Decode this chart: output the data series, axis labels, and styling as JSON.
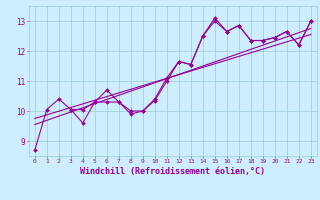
{
  "title": "",
  "xlabel": "Windchill (Refroidissement éolien,°C)",
  "ylabel": "",
  "bg_color": "#cceeff",
  "grid_color": "#99cccc",
  "line_color": "#990099",
  "marker": "D",
  "markersize": 2.0,
  "linewidth": 0.8,
  "xlim": [
    -0.5,
    23.5
  ],
  "ylim": [
    8.5,
    13.5
  ],
  "xtick_fontsize": 4.5,
  "ytick_fontsize": 5.5,
  "xlabel_fontsize": 6.0,
  "series": [
    {
      "x": [
        0,
        1,
        2,
        3,
        4,
        5,
        6,
        7,
        8,
        9,
        10,
        11,
        12,
        13,
        14,
        15,
        16,
        17,
        18,
        19,
        20,
        21,
        22,
        23
      ],
      "y": [
        8.7,
        10.05,
        10.4,
        10.05,
        9.6,
        10.3,
        10.7,
        10.3,
        9.9,
        10.0,
        10.4,
        11.1,
        11.65,
        11.55,
        12.5,
        13.1,
        12.65,
        12.85,
        12.35,
        12.35,
        12.45,
        12.65,
        12.2,
        13.0
      ],
      "markers": true
    },
    {
      "x": [
        3,
        4,
        5,
        6,
        7,
        8,
        9,
        10,
        11,
        12,
        13,
        14,
        15,
        16,
        17,
        18,
        19,
        20,
        21,
        22,
        23
      ],
      "y": [
        10.05,
        10.05,
        10.3,
        10.3,
        10.3,
        10.0,
        10.0,
        10.35,
        11.0,
        11.65,
        11.55,
        12.5,
        13.0,
        12.65,
        12.85,
        12.35,
        12.35,
        12.45,
        12.65,
        12.2,
        13.0
      ],
      "markers": true
    },
    {
      "x": [
        0,
        23
      ],
      "y": [
        9.55,
        12.75
      ],
      "markers": false
    },
    {
      "x": [
        0,
        23
      ],
      "y": [
        9.75,
        12.55
      ],
      "markers": false
    }
  ]
}
